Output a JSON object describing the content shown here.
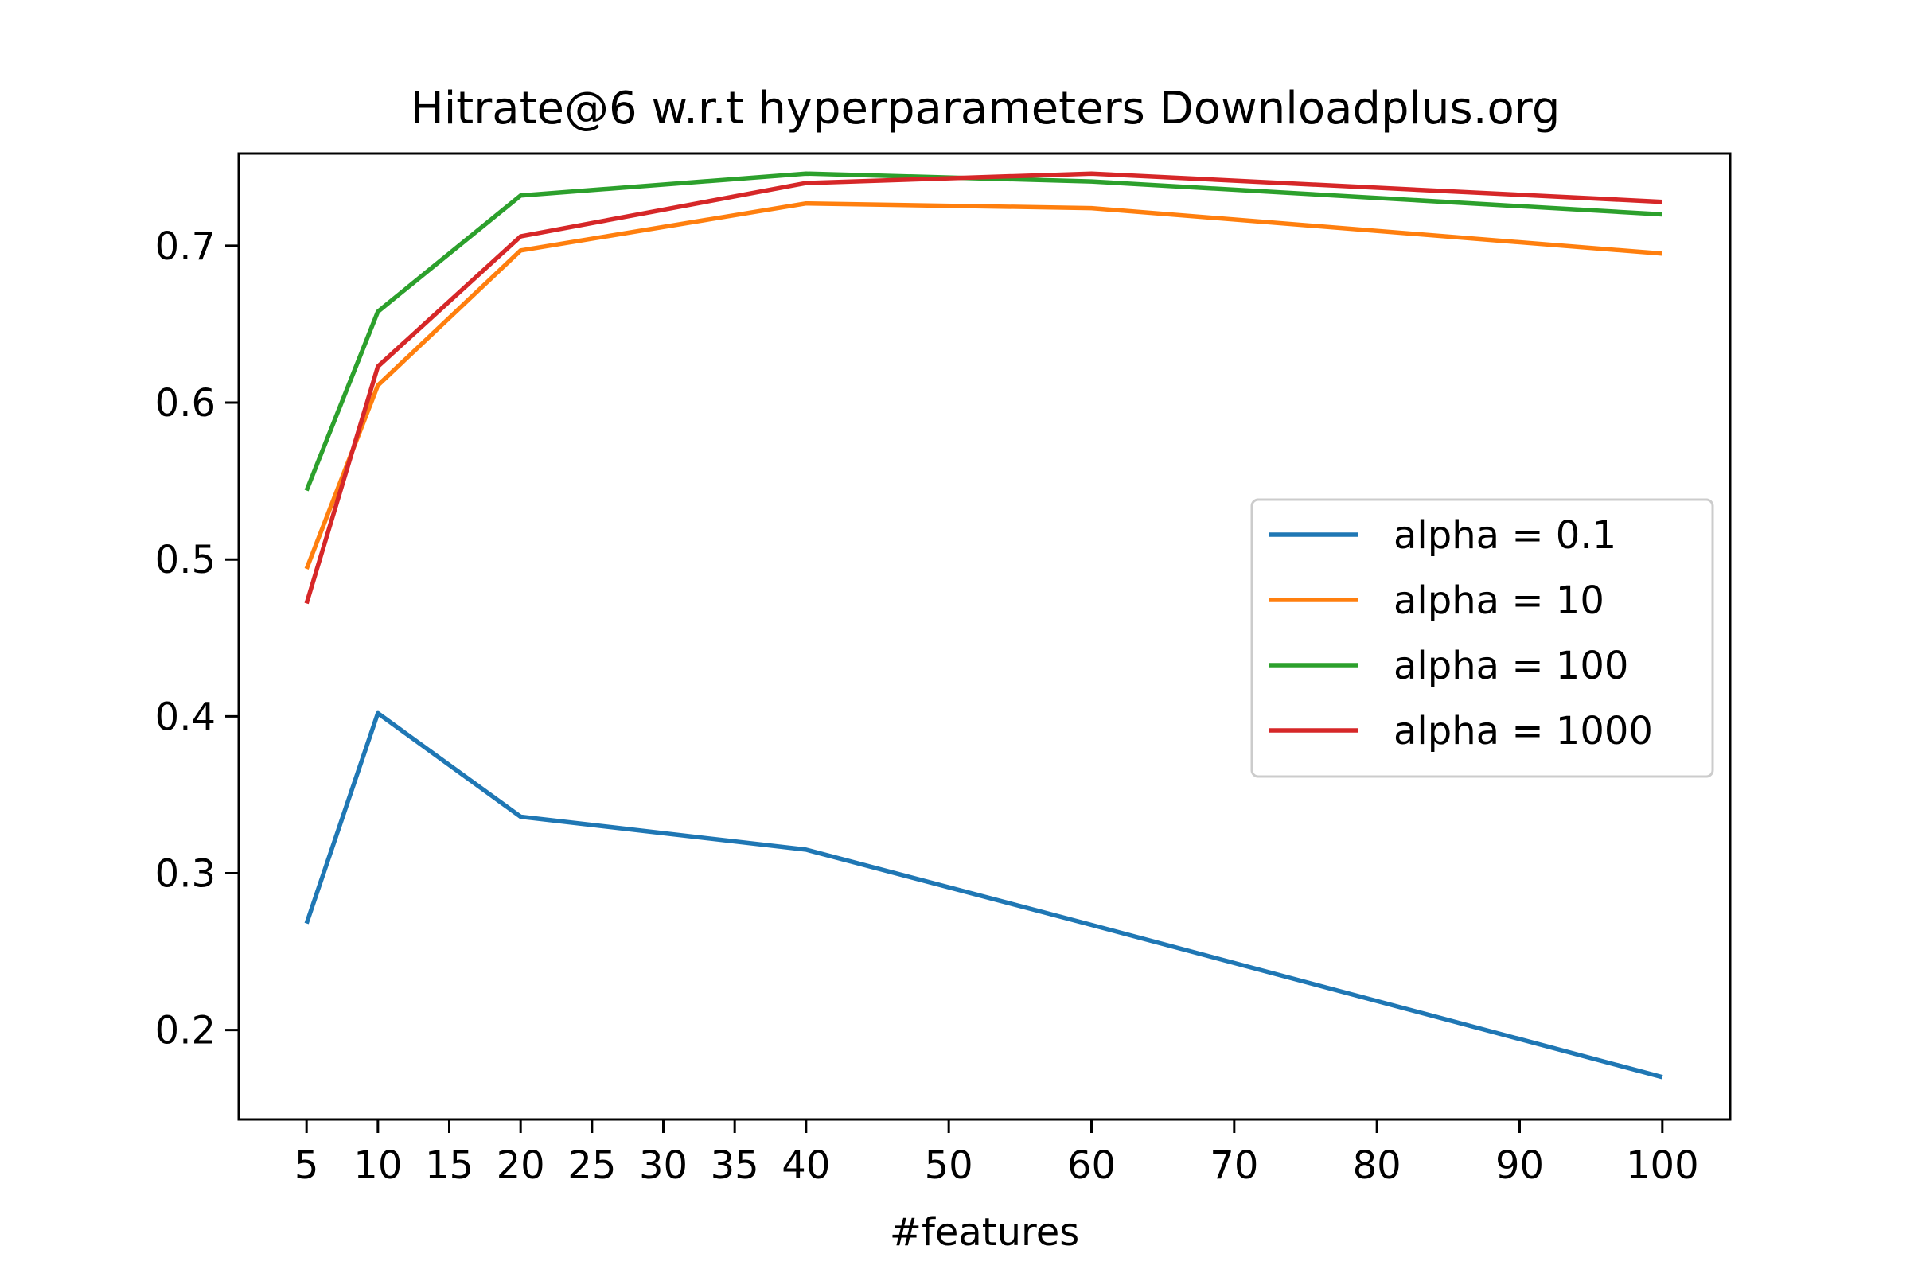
{
  "chart_data": {
    "type": "line",
    "title": "Hitrate@6 w.r.t hyperparameters Downloadplus.org",
    "xlabel": "#features",
    "ylabel": "",
    "x": [
      5,
      10,
      20,
      40,
      60,
      100
    ],
    "xticks": [
      5,
      10,
      15,
      20,
      25,
      30,
      35,
      40,
      50,
      60,
      70,
      80,
      90,
      100
    ],
    "yticks": [
      0.2,
      0.3,
      0.4,
      0.5,
      0.6,
      0.7
    ],
    "xlim": [
      0.25,
      104.75
    ],
    "ylim": [
      0.143,
      0.7588
    ],
    "grid": false,
    "legend_position": "center-right",
    "series": [
      {
        "name": "alpha = 0.1",
        "color": "#1f77b4",
        "values": [
          0.268,
          0.402,
          0.336,
          0.315,
          0.267,
          0.17
        ]
      },
      {
        "name": "alpha = 10",
        "color": "#ff7f0e",
        "values": [
          0.494,
          0.611,
          0.697,
          0.727,
          0.724,
          0.695
        ]
      },
      {
        "name": "alpha = 100",
        "color": "#2ca02c",
        "values": [
          0.544,
          0.658,
          0.732,
          0.746,
          0.741,
          0.72
        ]
      },
      {
        "name": "alpha = 1000",
        "color": "#d62728",
        "values": [
          0.472,
          0.623,
          0.706,
          0.74,
          0.746,
          0.728
        ]
      }
    ]
  }
}
